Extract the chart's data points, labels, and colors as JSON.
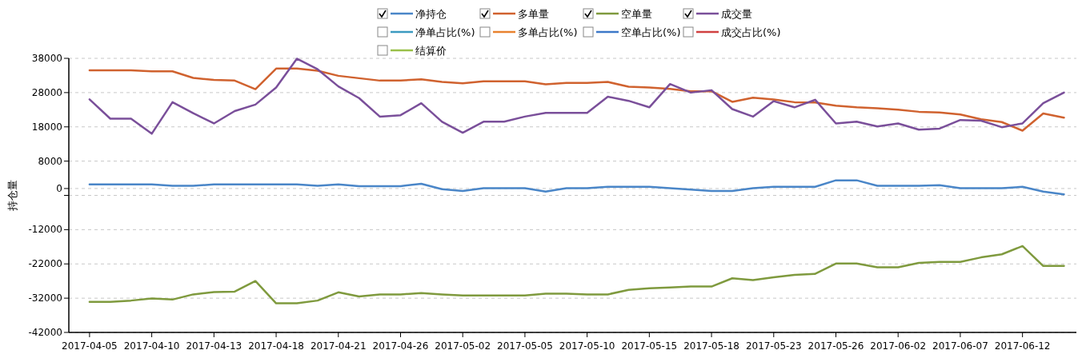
{
  "chart_data": {
    "type": "line",
    "ylabel": "持仓量",
    "legend": "top",
    "grid": "y",
    "line_style": "solid",
    "marker": "none",
    "categories": [
      "2017-04-05",
      null,
      null,
      "2017-04-10",
      null,
      null,
      "2017-04-13",
      null,
      null,
      "2017-04-18",
      null,
      null,
      "2017-04-21",
      null,
      null,
      "2017-04-26",
      null,
      null,
      "2017-05-02",
      null,
      null,
      "2017-05-05",
      null,
      null,
      "2017-05-10",
      null,
      null,
      "2017-05-15",
      null,
      null,
      "2017-05-18",
      null,
      null,
      "2017-05-23",
      null,
      null,
      "2017-05-26",
      null,
      null,
      "2017-06-02",
      null,
      null,
      "2017-06-07",
      null,
      null,
      "2017-06-12",
      null,
      null
    ],
    "ylim": [
      -42000,
      38000
    ],
    "yticks": [
      38000,
      28000,
      18000,
      8000,
      0,
      {
        "value": -2000,
        "label": null
      },
      -12000,
      -22000,
      -32000,
      -42000
    ],
    "series": [
      {
        "name": "净持仓",
        "color": "#4a86c8",
        "values": [
          1200,
          1200,
          1200,
          1200,
          800,
          800,
          1200,
          1200,
          1200,
          1200,
          1200,
          800,
          1200,
          700,
          700,
          700,
          1400,
          -200,
          -700,
          100,
          100,
          100,
          -900,
          100,
          100,
          500,
          500,
          500,
          100,
          -300,
          -700,
          -700,
          100,
          500,
          500,
          500,
          2400,
          2400,
          800,
          800,
          800,
          1000,
          100,
          100,
          100,
          500,
          -900,
          -1700
        ]
      },
      {
        "name": "多单量",
        "color": "#d0622f",
        "values": [
          34500,
          34500,
          34500,
          34200,
          34200,
          32300,
          31700,
          31500,
          29000,
          35000,
          35000,
          34400,
          32900,
          32200,
          31500,
          31500,
          31900,
          31100,
          30700,
          31300,
          31300,
          31300,
          30400,
          30800,
          30800,
          31100,
          29700,
          29500,
          29100,
          28400,
          28400,
          25300,
          26500,
          26000,
          25200,
          25100,
          24200,
          23700,
          23400,
          23000,
          22400,
          22200,
          21600,
          20200,
          19400,
          16900,
          21900,
          20700
        ]
      },
      {
        "name": "空单量",
        "color": "#7f9a3e",
        "values": [
          -33100,
          -33100,
          -32700,
          -32100,
          -32400,
          -30900,
          -30200,
          -30100,
          -27000,
          -33500,
          -33500,
          -32700,
          -30300,
          -31500,
          -30900,
          -30900,
          -30500,
          -30900,
          -31200,
          -31200,
          -31200,
          -31200,
          -30700,
          -30700,
          -30900,
          -30900,
          -29600,
          -29100,
          -28900,
          -28600,
          -28600,
          -26200,
          -26700,
          -25900,
          -25200,
          -24900,
          -21900,
          -21900,
          -23000,
          -23000,
          -21700,
          -21400,
          -21400,
          -20100,
          -19200,
          -16800,
          -22600,
          -22600
        ]
      },
      {
        "name": "成交量",
        "color": "#7a4f9a",
        "values": [
          26000,
          20400,
          20400,
          16000,
          25200,
          22000,
          19000,
          22600,
          24500,
          29500,
          37900,
          34800,
          29800,
          26400,
          21000,
          21400,
          24900,
          19500,
          16300,
          19500,
          19500,
          21000,
          22100,
          22100,
          22100,
          26800,
          25600,
          23700,
          30500,
          28000,
          28700,
          23200,
          21000,
          25500,
          23700,
          25900,
          19000,
          19500,
          18100,
          19000,
          17200,
          17500,
          20000,
          19800,
          17900,
          19000,
          24900,
          28000
        ]
      },
      {
        "name": "净单占比(%)",
        "color": "#3b9ac0",
        "values": [
          null,
          null,
          null,
          null,
          null,
          null,
          null,
          null,
          null,
          null,
          null,
          null,
          null,
          null,
          null,
          null,
          null,
          null,
          null,
          null,
          null,
          null,
          null,
          null,
          null,
          null,
          null,
          null,
          null,
          null,
          null,
          null,
          null,
          null,
          null,
          null,
          null,
          null,
          null,
          null,
          null,
          null,
          null,
          null,
          null,
          null,
          null,
          null
        ]
      },
      {
        "name": "多单占比(%)",
        "color": "#e8822e",
        "values": [
          null,
          null,
          null,
          null,
          null,
          null,
          null,
          null,
          null,
          null,
          null,
          null,
          null,
          null,
          null,
          null,
          null,
          null,
          null,
          null,
          null,
          null,
          null,
          null,
          null,
          null,
          null,
          null,
          null,
          null,
          null,
          null,
          null,
          null,
          null,
          null,
          null,
          null,
          null,
          null,
          null,
          null,
          null,
          null,
          null,
          null,
          null,
          null
        ]
      },
      {
        "name": "空单占比(%)",
        "color": "#3c78c8",
        "values": [
          null,
          null,
          null,
          null,
          null,
          null,
          null,
          null,
          null,
          null,
          null,
          null,
          null,
          null,
          null,
          null,
          null,
          null,
          null,
          null,
          null,
          null,
          null,
          null,
          null,
          null,
          null,
          null,
          null,
          null,
          null,
          null,
          null,
          null,
          null,
          null,
          null,
          null,
          null,
          null,
          null,
          null,
          null,
          null,
          null,
          null,
          null,
          null
        ]
      },
      {
        "name": "成交占比(%)",
        "color": "#d04040",
        "values": [
          null,
          null,
          null,
          null,
          null,
          null,
          null,
          null,
          null,
          null,
          null,
          null,
          null,
          null,
          null,
          null,
          null,
          null,
          null,
          null,
          null,
          null,
          null,
          null,
          null,
          null,
          null,
          null,
          null,
          null,
          null,
          null,
          null,
          null,
          null,
          null,
          null,
          null,
          null,
          null,
          null,
          null,
          null,
          null,
          null,
          null,
          null,
          null
        ]
      },
      {
        "name": "结算价",
        "color": "#9ac04a",
        "values": [
          null,
          null,
          null,
          null,
          null,
          null,
          null,
          null,
          null,
          null,
          null,
          null,
          null,
          null,
          null,
          null,
          null,
          null,
          null,
          null,
          null,
          null,
          null,
          null,
          null,
          null,
          null,
          null,
          null,
          null,
          null,
          null,
          null,
          null,
          null,
          null,
          null,
          null,
          null,
          null,
          null,
          null,
          null,
          null,
          null,
          null,
          null,
          null
        ]
      }
    ]
  }
}
